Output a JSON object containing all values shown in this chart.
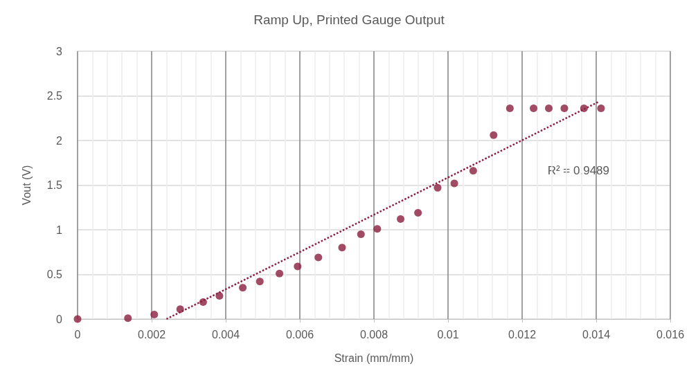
{
  "chart_data": {
    "type": "scatter",
    "title": "Ramp Up, Printed Gauge Output",
    "xlabel": "Strain (mm/mm)",
    "ylabel": "Vout (V)",
    "annotations": [
      "R² = 0.9489"
    ],
    "xlim": [
      0,
      0.016
    ],
    "xticks": [
      0,
      0.002,
      0.004,
      0.006,
      0.008,
      0.01,
      0.012,
      0.014,
      0.016
    ],
    "ylim": [
      0,
      3
    ],
    "yticks": [
      0,
      0.5,
      1,
      1.5,
      2,
      2.5,
      3
    ],
    "grid": true,
    "marker": "circle",
    "series": [
      {
        "color": "#8b1e3f",
        "x": [
          0,
          0.00136,
          0.00207,
          0.00277,
          0.00339,
          0.00383,
          0.00446,
          0.00492,
          0.00545,
          0.00594,
          0.0065,
          0.00714,
          0.00765,
          0.00809,
          0.00872,
          0.00919,
          0.00972,
          0.01017,
          0.01068,
          0.01123,
          0.01167,
          0.01231,
          0.01272,
          0.01314,
          0.01367,
          0.01413
        ],
        "values": [
          0,
          0.01,
          0.05,
          0.11,
          0.19,
          0.26,
          0.35,
          0.42,
          0.51,
          0.59,
          0.69,
          0.8,
          0.95,
          1.01,
          1.12,
          1.19,
          1.47,
          1.52,
          1.66,
          2.06,
          2.36,
          2.36,
          2.36,
          2.36,
          2.36,
          2.36
        ]
      },
      {
        "type": "line",
        "color": "#8b1e3f",
        "line_style": "dotted",
        "marker": "none",
        "x": [
          0.0024,
          0.01405
        ],
        "values": [
          0,
          2.43
        ]
      }
    ]
  }
}
